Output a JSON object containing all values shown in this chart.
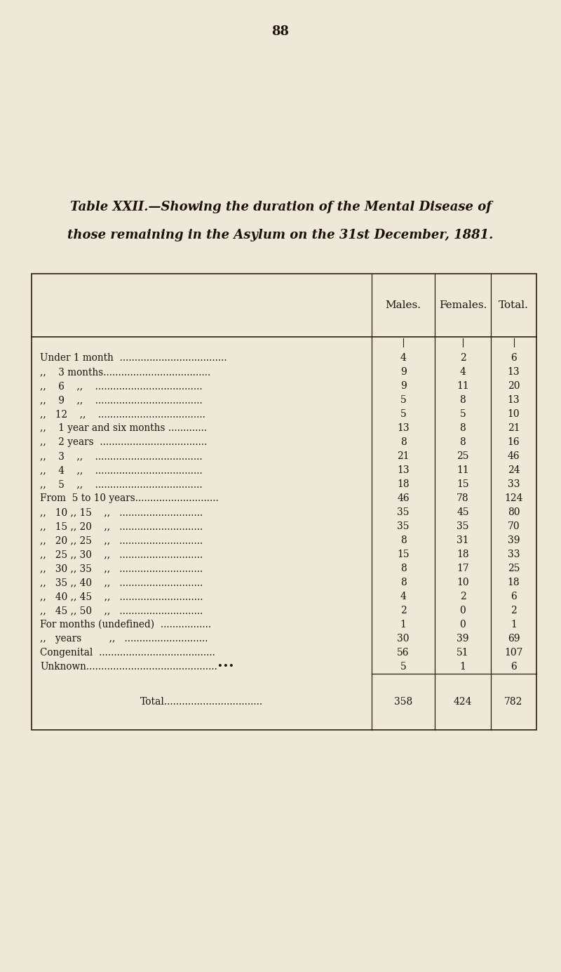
{
  "page_number": "88",
  "title_line1": "Table XXII.—Showing the duration of the Mental Disease of",
  "title_line2": "those remaining in the Asylum on the 31st December, 1881.",
  "col_headers": [
    "Males.",
    "Females.",
    "Total."
  ],
  "rows": [
    {
      "label": "Under 1 month  ....................................",
      "males": "4",
      "females": "2",
      "total": "6"
    },
    {
      "label": ",,    3 months....................................",
      "males": "9",
      "females": "4",
      "total": "13"
    },
    {
      "label": ",,    6    ,,    ....................................",
      "males": "9",
      "females": "11",
      "total": "20"
    },
    {
      "label": ",,    9    ,,    ....................................",
      "males": "5",
      "females": "8",
      "total": "13"
    },
    {
      "label": ",,   12    ,,    ....................................",
      "males": "5",
      "females": "5",
      "total": "10"
    },
    {
      "label": ",,    1 year and six months .............",
      "males": "13",
      "females": "8",
      "total": "21"
    },
    {
      "label": ",,    2 years  ....................................",
      "males": "8",
      "females": "8",
      "total": "16"
    },
    {
      "label": ",,    3    ,,    ....................................",
      "males": "21",
      "females": "25",
      "total": "46"
    },
    {
      "label": ",,    4    ,,    ....................................",
      "males": "13",
      "females": "11",
      "total": "24"
    },
    {
      "label": ",,    5    ,,    ....................................",
      "males": "18",
      "females": "15",
      "total": "33"
    },
    {
      "label": "From  5 to 10 years............................",
      "males": "46",
      "females": "78",
      "total": "124"
    },
    {
      "label": ",,   10 ,, 15    ,,   ............................",
      "males": "35",
      "females": "45",
      "total": "80"
    },
    {
      "label": ",,   15 ,, 20    ,,   ............................",
      "males": "35",
      "females": "35",
      "total": "70"
    },
    {
      "label": ",,   20 ,, 25    ,,   ............................",
      "males": "8",
      "females": "31",
      "total": "39"
    },
    {
      "label": ",,   25 ,, 30    ,,   ............................",
      "males": "15",
      "females": "18",
      "total": "33"
    },
    {
      "label": ",,   30 ,, 35    ,,   ............................",
      "males": "8",
      "females": "17",
      "total": "25"
    },
    {
      "label": ",,   35 ,, 40    ,,   ............................",
      "males": "8",
      "females": "10",
      "total": "18"
    },
    {
      "label": ",,   40 ,, 45    ,,   ............................",
      "males": "4",
      "females": "2",
      "total": "6"
    },
    {
      "label": ",,   45 ,, 50    ,,   ............................",
      "males": "2",
      "females": "0",
      "total": "2"
    },
    {
      "label": "For months (undefined)  .................",
      "males": "1",
      "females": "0",
      "total": "1"
    },
    {
      "label": ",,   years         ,,   ............................",
      "males": "30",
      "females": "39",
      "total": "69"
    },
    {
      "label": "Congenital  .......................................",
      "males": "56",
      "females": "51",
      "total": "107"
    },
    {
      "label": "Unknown............................................•••",
      "males": "5",
      "females": "1",
      "total": "6"
    }
  ],
  "total_row": {
    "label": "Total.................................",
    "males": "358",
    "females": "424",
    "total": "782"
  },
  "bg_color": "#ede8d8",
  "text_color": "#1a1208",
  "line_color": "#2a2010"
}
